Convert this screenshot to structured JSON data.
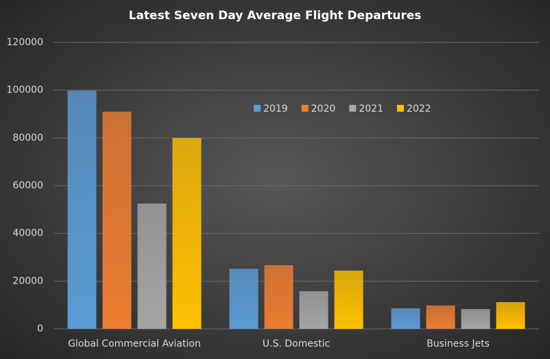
{
  "chart_data": {
    "type": "bar",
    "title": "Latest Seven Day Average Flight Departures",
    "categories": [
      "Global Commercial Aviation",
      "U.S. Domestic",
      "Business Jets"
    ],
    "series": [
      {
        "name": "2019",
        "color": "#5b9bd5",
        "values": [
          99800,
          25200,
          8600
        ]
      },
      {
        "name": "2020",
        "color": "#ed7d31",
        "values": [
          91000,
          26700,
          9800
        ]
      },
      {
        "name": "2021",
        "color": "#a5a5a5",
        "values": [
          52500,
          15800,
          8300
        ]
      },
      {
        "name": "2022",
        "color": "#ffc000",
        "values": [
          80000,
          24400,
          11200
        ]
      }
    ],
    "ylim": [
      0,
      120000
    ],
    "yticks": [
      0,
      20000,
      40000,
      60000,
      80000,
      100000,
      120000
    ],
    "grid": true,
    "legend": "top-center"
  }
}
